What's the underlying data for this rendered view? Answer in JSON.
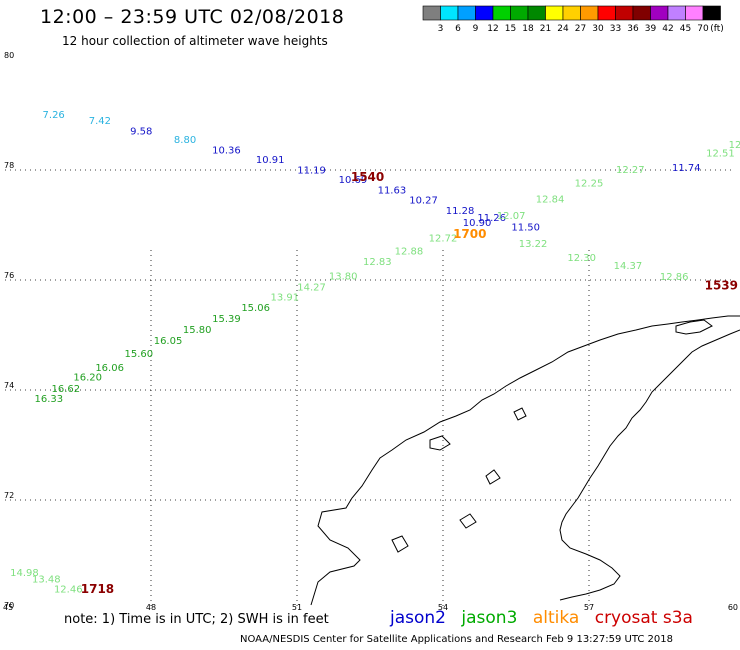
{
  "header": {
    "title": "12:00 – 23:59 UTC 02/08/2018",
    "subtitle": "12 hour collection of altimeter wave heights"
  },
  "colorbar": {
    "ticks": [
      "3",
      "6",
      "9",
      "12",
      "15",
      "18",
      "21",
      "24",
      "27",
      "30",
      "33",
      "36",
      "39",
      "42",
      "45",
      "70"
    ],
    "unit": "(ft)",
    "colors": [
      "#7f7f7f",
      "#00e5ff",
      "#00a0ff",
      "#0000ff",
      "#00d000",
      "#00aa00",
      "#008800",
      "#ffff00",
      "#ffd000",
      "#ff9a00",
      "#ff0000",
      "#c00000",
      "#800000",
      "#a000c0",
      "#c080ff",
      "#ff80ff",
      "#000000"
    ]
  },
  "map": {
    "lat_labels": [
      "80",
      "78",
      "76",
      "74",
      "72",
      "70"
    ],
    "lon_labels": [
      "45",
      "48",
      "51",
      "54",
      "57",
      "60"
    ],
    "lat_values": [
      80,
      78,
      76,
      74,
      72,
      70
    ],
    "lon_values": [
      45,
      48,
      51,
      54,
      57,
      60
    ],
    "lon_range": [
      45,
      60
    ],
    "lat_range": [
      70,
      80
    ],
    "grid": "dotted"
  },
  "observations": [
    {
      "v": "7.26",
      "c": "#2bb3e0",
      "lon": 46.0,
      "lat": 78.95
    },
    {
      "v": "7.42",
      "c": "#2bb3e0",
      "lon": 46.95,
      "lat": 78.84
    },
    {
      "v": "9.58",
      "c": "#1414c8",
      "lon": 47.8,
      "lat": 78.65
    },
    {
      "v": "8.80",
      "c": "#2bb3e0",
      "lon": 48.7,
      "lat": 78.49
    },
    {
      "v": "10.36",
      "c": "#1414c8",
      "lon": 49.55,
      "lat": 78.3
    },
    {
      "v": "10.91",
      "c": "#1414c8",
      "lon": 50.45,
      "lat": 78.13
    },
    {
      "v": "11.19",
      "c": "#1414c8",
      "lon": 51.3,
      "lat": 77.94
    },
    {
      "v": "10.69",
      "c": "#1414c8",
      "lon": 52.15,
      "lat": 77.76
    },
    {
      "v": "11.63",
      "c": "#1414c8",
      "lon": 52.95,
      "lat": 77.57
    },
    {
      "v": "10.27",
      "c": "#1414c8",
      "lon": 53.6,
      "lat": 77.39
    },
    {
      "v": "11.28",
      "c": "#1414c8",
      "lon": 54.35,
      "lat": 77.2
    },
    {
      "v": "11.26",
      "c": "#1414c8",
      "lon": 55.0,
      "lat": 77.07
    },
    {
      "v": "10.90",
      "c": "#1414c8",
      "lon": 54.7,
      "lat": 76.98
    },
    {
      "v": "11.50",
      "c": "#1414c8",
      "lon": 55.7,
      "lat": 76.9
    },
    {
      "v": "11.74",
      "c": "#1414c8",
      "lon": 59.0,
      "lat": 77.98
    },
    {
      "v": "16.33",
      "c": "#22a022",
      "lon": 45.9,
      "lat": 73.78
    },
    {
      "v": "16.62",
      "c": "#22a022",
      "lon": 46.25,
      "lat": 73.96
    },
    {
      "v": "16.20",
      "c": "#22a022",
      "lon": 46.7,
      "lat": 74.17
    },
    {
      "v": "16.06",
      "c": "#22a022",
      "lon": 47.15,
      "lat": 74.35
    },
    {
      "v": "15.60",
      "c": "#22a022",
      "lon": 47.75,
      "lat": 74.6
    },
    {
      "v": "16.05",
      "c": "#22a022",
      "lon": 48.35,
      "lat": 74.84
    },
    {
      "v": "15.80",
      "c": "#22a022",
      "lon": 48.95,
      "lat": 75.04
    },
    {
      "v": "15.39",
      "c": "#22a022",
      "lon": 49.55,
      "lat": 75.24
    },
    {
      "v": "15.06",
      "c": "#22a022",
      "lon": 50.15,
      "lat": 75.44
    },
    {
      "v": "13.91",
      "c": "#7fe07f",
      "lon": 50.75,
      "lat": 75.63
    },
    {
      "v": "14.27",
      "c": "#7fe07f",
      "lon": 51.3,
      "lat": 75.81
    },
    {
      "v": "13.80",
      "c": "#7fe07f",
      "lon": 51.95,
      "lat": 76.01
    },
    {
      "v": "12.83",
      "c": "#7fe07f",
      "lon": 52.65,
      "lat": 76.27
    },
    {
      "v": "12.88",
      "c": "#7fe07f",
      "lon": 53.3,
      "lat": 76.46
    },
    {
      "v": "12.72",
      "c": "#7fe07f",
      "lon": 54.0,
      "lat": 76.7
    },
    {
      "v": "12.07",
      "c": "#7fe07f",
      "lon": 55.4,
      "lat": 77.11
    },
    {
      "v": "12.84",
      "c": "#7fe07f",
      "lon": 56.2,
      "lat": 77.41
    },
    {
      "v": "12.25",
      "c": "#7fe07f",
      "lon": 57.0,
      "lat": 77.7
    },
    {
      "v": "12.27",
      "c": "#7fe07f",
      "lon": 57.85,
      "lat": 77.95
    },
    {
      "v": "12.51",
      "c": "#7fe07f",
      "lon": 59.7,
      "lat": 78.25
    },
    {
      "v": "12",
      "c": "#7fe07f",
      "lon": 60.0,
      "lat": 78.4
    },
    {
      "v": "13.22",
      "c": "#7fe07f",
      "lon": 55.85,
      "lat": 76.6
    },
    {
      "v": "12.30",
      "c": "#7fe07f",
      "lon": 56.85,
      "lat": 76.35
    },
    {
      "v": "14.37",
      "c": "#7fe07f",
      "lon": 57.8,
      "lat": 76.2
    },
    {
      "v": "12.86",
      "c": "#7fe07f",
      "lon": 58.75,
      "lat": 76.0
    },
    {
      "v": "14.98",
      "c": "#7fe07f",
      "lon": 45.4,
      "lat": 70.62
    },
    {
      "v": "13.48",
      "c": "#7fe07f",
      "lon": 45.85,
      "lat": 70.5
    },
    {
      "v": "12.46",
      "c": "#7fe07f",
      "lon": 46.3,
      "lat": 70.32
    }
  ],
  "times": [
    {
      "t": "1540",
      "c": "#8b0000",
      "lon": 52.45,
      "lat": 77.8
    },
    {
      "t": "1700",
      "c": "#ff8c00",
      "lon": 54.55,
      "lat": 76.76
    },
    {
      "t": "1539",
      "c": "#8b0000",
      "lon": 60.0,
      "lat": 75.83
    },
    {
      "t": "1718",
      "c": "#8b0000",
      "lon": 46.9,
      "lat": 70.31
    }
  ],
  "footer": {
    "note": "note:  1) Time is in UTC;  2) SWH is in feet",
    "sat1": "jason2",
    "sat1_color": "#0000cc",
    "sat2": "jason3",
    "sat2_color": "#00aa00",
    "sat3": "altika",
    "sat3_color": "#ff8c00",
    "sat4": "cryosat s3a",
    "sat4_color": "#cc0000",
    "credit": "NOAA/NESDIS Center for Satellite Applications and Research     Feb  9 13:27:59 UTC 2018"
  }
}
